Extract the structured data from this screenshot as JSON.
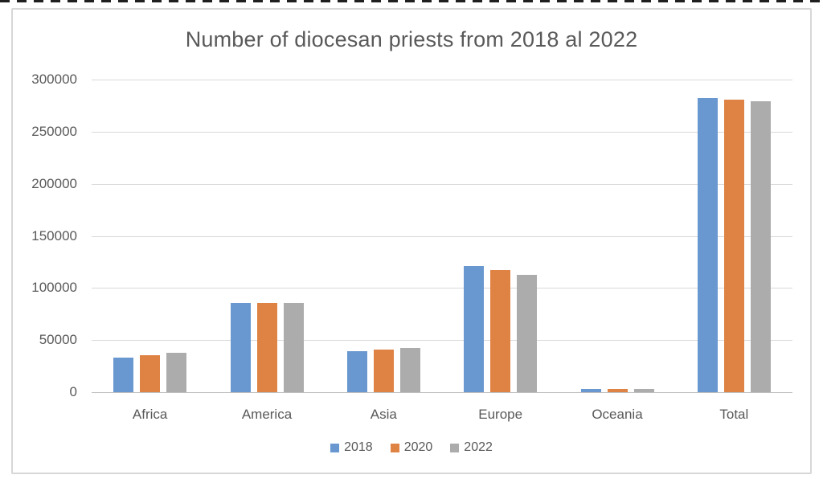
{
  "chart_data": {
    "type": "bar",
    "title": "Number of diocesan priests from 2018 al 2022",
    "categories": [
      "Africa",
      "America",
      "Asia",
      "Europe",
      "Oceania",
      "Total"
    ],
    "series": [
      {
        "name": "2018",
        "color": "#6998d0",
        "values": [
          33000,
          86000,
          39000,
          121000,
          2800,
          282000
        ]
      },
      {
        "name": "2020",
        "color": "#df8344",
        "values": [
          35500,
          85700,
          40600,
          117000,
          2800,
          280500
        ]
      },
      {
        "name": "2022",
        "color": "#acacac",
        "values": [
          37500,
          85800,
          42200,
          112500,
          2800,
          279500
        ]
      }
    ],
    "y_ticks": [
      0,
      50000,
      100000,
      150000,
      200000,
      250000,
      300000
    ],
    "ylim": [
      0,
      300000
    ],
    "xlabel": "",
    "ylabel": "",
    "grid": true,
    "legend_position": "bottom"
  },
  "colors": {
    "text": "#595959",
    "gridline": "#d9d9d9",
    "axis_line": "#bfbfbf",
    "chart_border": "#d7d7d7",
    "background": "#ffffff"
  }
}
